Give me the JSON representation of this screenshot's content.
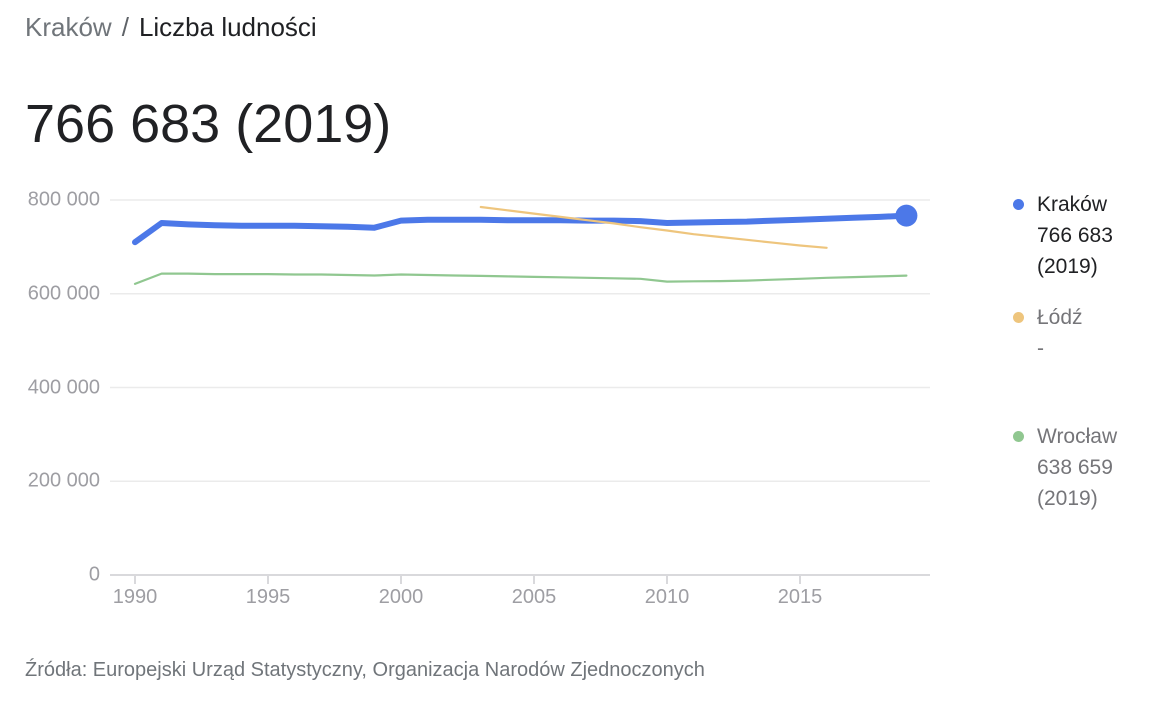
{
  "breadcrumb": {
    "city": "Kraków",
    "separator": "/",
    "metric": "Liczba ludności"
  },
  "headline": {
    "value": "766 683 (2019)"
  },
  "chart_data": {
    "type": "line",
    "title": "Liczba ludności",
    "xlabel": "",
    "ylabel": "",
    "xlim": [
      1989.8,
      2020
    ],
    "ylim": [
      0,
      800000
    ],
    "grid": true,
    "legend_position": "right",
    "y_ticks": [
      "0",
      "200 000",
      "400 000",
      "600 000",
      "800 000"
    ],
    "x_ticks": [
      "1990",
      "1995",
      "2000",
      "2005",
      "2010",
      "2015"
    ],
    "series": [
      {
        "name": "Kraków",
        "legend_value": "766 683",
        "legend_year": "(2019)",
        "color": "#4c78e8",
        "highlight": true,
        "end_dot": true,
        "years": [
          1990,
          1991,
          1992,
          1993,
          1994,
          1995,
          1996,
          1997,
          1998,
          1999,
          2000,
          2001,
          2002,
          2003,
          2004,
          2005,
          2006,
          2007,
          2008,
          2009,
          2010,
          2011,
          2012,
          2013,
          2014,
          2015,
          2016,
          2017,
          2018,
          2019
        ],
        "values": [
          710000,
          751000,
          748000,
          746000,
          745000,
          745000,
          745000,
          744000,
          743000,
          741000,
          756000,
          758000,
          758000,
          758000,
          757000,
          757000,
          757000,
          756000,
          756000,
          755000,
          751000,
          752000,
          753000,
          754000,
          756000,
          758000,
          760000,
          762000,
          764000,
          766683
        ]
      },
      {
        "name": "Łódź",
        "legend_value": "-",
        "legend_year": "",
        "color": "#eec57d",
        "highlight": false,
        "end_dot": false,
        "years": [
          2003,
          2004,
          2005,
          2006,
          2007,
          2008,
          2009,
          2010,
          2011,
          2012,
          2013,
          2014,
          2015,
          2016
        ],
        "values": [
          785000,
          778000,
          771000,
          764000,
          757000,
          750000,
          742000,
          735000,
          727000,
          721000,
          715000,
          709000,
          703000,
          698000
        ]
      },
      {
        "name": "Wrocław",
        "legend_value": "638 659",
        "legend_year": "(2019)",
        "color": "#90c790",
        "highlight": false,
        "end_dot": false,
        "years": [
          1990,
          1991,
          1992,
          1993,
          1994,
          1995,
          1996,
          1997,
          1998,
          1999,
          2000,
          2001,
          2002,
          2003,
          2004,
          2005,
          2006,
          2007,
          2008,
          2009,
          2010,
          2011,
          2012,
          2013,
          2014,
          2015,
          2016,
          2017,
          2018,
          2019
        ],
        "values": [
          621000,
          643000,
          643000,
          642000,
          642000,
          642000,
          641000,
          641000,
          640000,
          639000,
          641000,
          640000,
          639000,
          638000,
          637000,
          636000,
          635000,
          634000,
          633000,
          632000,
          626000,
          626500,
          627000,
          628000,
          630000,
          632000,
          634000,
          635500,
          637000,
          638659
        ]
      }
    ]
  },
  "colors": {
    "text_dark": "#202124",
    "text_gray": "#70757a",
    "axis_label": "#9e9ea3",
    "gridline": "#ebebeb",
    "axis_line": "#d9d9dc"
  },
  "source": {
    "text": "Źródła: Europejski Urząd Statystyczny, Organizacja Narodów Zjednoczonych"
  }
}
